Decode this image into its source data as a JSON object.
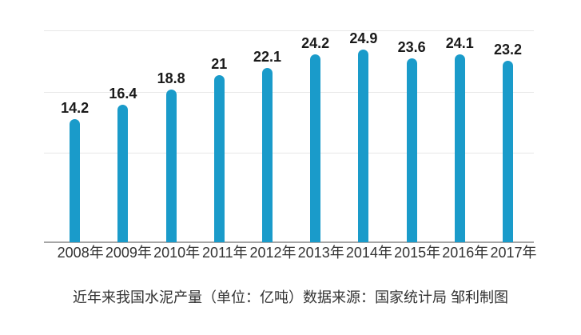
{
  "caption": "近年来我国水泥产量（单位：亿吨）数据来源：国家统计局 邹利制图",
  "chart_data": {
    "type": "bar",
    "title": "近年来我国水泥产量（单位：亿吨）",
    "source": "数据来源：国家统计局 邹利制图",
    "categories": [
      "2008年",
      "2009年",
      "2010年",
      "2011年",
      "2012年",
      "2013年",
      "2014年",
      "2015年",
      "2016年",
      "2017年"
    ],
    "values": [
      14.2,
      16.4,
      18.8,
      21,
      22.1,
      24.2,
      24.9,
      23.6,
      24.1,
      23.2
    ],
    "value_labels": [
      "14.2",
      "16.4",
      "18.8",
      "21",
      "22.1",
      "24.2",
      "24.9",
      "23.6",
      "24.1",
      "23.2"
    ],
    "xlabel": "",
    "ylabel": "",
    "unit": "亿吨",
    "grid": true,
    "gridline_count": 3,
    "legend": false,
    "value_labels_shown": true,
    "colors": {
      "bar": "#1A9BCA",
      "gridline": "#e7e7e7",
      "axis": "#a6a6a6",
      "value_label": "#1a1a1a",
      "tick_label": "#333333",
      "caption": "#333333"
    }
  }
}
